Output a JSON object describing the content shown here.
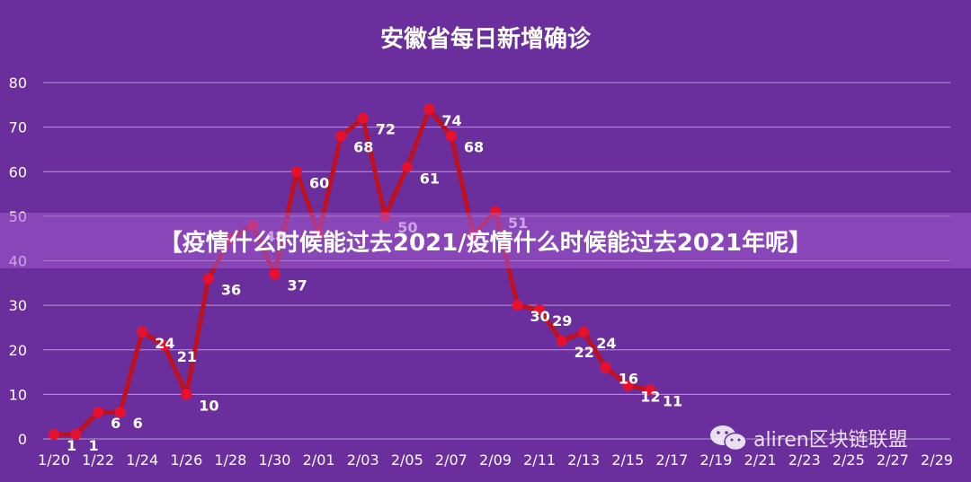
{
  "chart_data": {
    "type": "line",
    "title": "安徽省每日新增确诊",
    "xlabel": "",
    "ylabel": "",
    "ylim": [
      0,
      80
    ],
    "yticks": [
      0,
      10,
      20,
      30,
      40,
      50,
      60,
      70,
      80
    ],
    "grid": true,
    "x_tick_labels": [
      "1/20",
      "1/22",
      "1/24",
      "1/26",
      "1/28",
      "1/30",
      "2/01",
      "2/03",
      "2/05",
      "2/07",
      "2/09",
      "2/11",
      "2/13",
      "2/15",
      "2/17",
      "2/19",
      "2/21",
      "2/23",
      "2/25",
      "2/27",
      "2/29"
    ],
    "x": [
      "1/20",
      "1/21",
      "1/22",
      "1/23",
      "1/24",
      "1/25",
      "1/26",
      "1/27",
      "1/28",
      "1/29",
      "1/30",
      "1/31",
      "2/01",
      "2/02",
      "2/03",
      "2/04",
      "2/05",
      "2/06",
      "2/07",
      "2/08",
      "2/09",
      "2/10",
      "2/11",
      "2/12",
      "2/13",
      "2/14",
      "2/15",
      "2/16"
    ],
    "series": [
      {
        "color": "#c0101e",
        "marker_color": "#e8112d",
        "values": [
          1,
          1,
          6,
          6,
          24,
          21,
          10,
          36,
          45,
          48,
          37,
          60,
          46,
          68,
          72,
          50,
          61,
          74,
          68,
          46,
          51,
          30,
          29,
          22,
          24,
          16,
          12,
          11
        ],
        "labels": [
          1,
          1,
          6,
          6,
          24,
          21,
          10,
          36,
          null,
          48,
          37,
          60,
          null,
          68,
          72,
          50,
          61,
          74,
          68,
          null,
          51,
          30,
          29,
          22,
          24,
          16,
          12,
          11
        ]
      }
    ]
  },
  "banner": {
    "text": "【疫情什么时候能过去2021/疫情什么时候能过去2021年呢】"
  },
  "watermark": {
    "text": "aliren区块链联盟",
    "icon": "wechat-icon"
  }
}
